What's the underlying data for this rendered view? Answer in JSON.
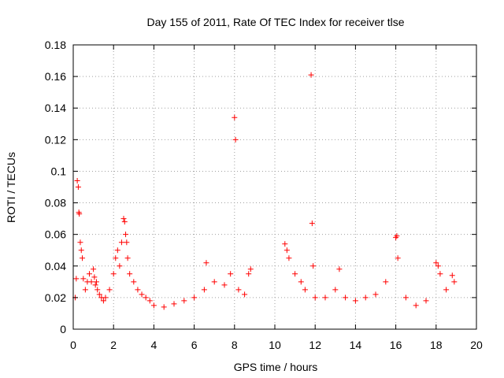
{
  "chart_data": {
    "type": "scatter",
    "title": "Day 155 of 2011, Rate Of TEC Index for receiver tlse",
    "xlabel": "GPS time / hours",
    "ylabel": "ROTI / TECUs",
    "xlim": [
      0,
      20
    ],
    "ylim": [
      0,
      0.18
    ],
    "xticks": [
      0,
      2,
      4,
      6,
      8,
      10,
      12,
      14,
      16,
      18,
      20
    ],
    "yticks": [
      0,
      0.02,
      0.04,
      0.06,
      0.08,
      0.1,
      0.12,
      0.14,
      0.16,
      0.18
    ],
    "xtick_labels": [
      "0",
      "2",
      "4",
      "6",
      "8",
      "10",
      "12",
      "14",
      "16",
      "18",
      "20"
    ],
    "ytick_labels": [
      "0",
      "0.02",
      "0.04",
      "0.06",
      "0.08",
      "0.1",
      "0.12",
      "0.14",
      "0.16",
      "0.18"
    ],
    "grid": true,
    "marker": "+",
    "color": "#ff0000",
    "data_gap_hours": [
      8.9,
      10.2
    ],
    "series": [
      {
        "name": "ROTI",
        "x": [
          0.1,
          0.15,
          0.2,
          0.25,
          0.28,
          0.3,
          0.35,
          0.4,
          0.45,
          0.5,
          0.6,
          0.7,
          0.8,
          0.9,
          1.0,
          1.05,
          1.1,
          1.15,
          1.2,
          1.3,
          1.4,
          1.5,
          1.6,
          1.8,
          2.0,
          2.1,
          2.2,
          2.3,
          2.4,
          2.5,
          2.55,
          2.6,
          2.65,
          2.7,
          2.8,
          3.0,
          3.2,
          3.4,
          3.6,
          3.8,
          4.0,
          4.5,
          5.0,
          5.5,
          6.0,
          6.5,
          6.6,
          7.0,
          7.5,
          7.8,
          8.0,
          8.05,
          8.2,
          8.5,
          8.7,
          8.8,
          10.5,
          10.6,
          10.7,
          11.0,
          11.3,
          11.5,
          11.8,
          11.85,
          11.9,
          12.0,
          12.5,
          13.0,
          13.2,
          13.5,
          14.0,
          14.5,
          15.0,
          15.5,
          16.0,
          16.05,
          16.1,
          16.5,
          17.0,
          17.5,
          18.0,
          18.1,
          18.2,
          18.5,
          18.8,
          18.9
        ],
        "y": [
          0.02,
          0.032,
          0.094,
          0.09,
          0.074,
          0.073,
          0.055,
          0.05,
          0.045,
          0.032,
          0.025,
          0.03,
          0.035,
          0.03,
          0.038,
          0.033,
          0.028,
          0.03,
          0.025,
          0.022,
          0.02,
          0.018,
          0.02,
          0.025,
          0.035,
          0.045,
          0.05,
          0.04,
          0.055,
          0.07,
          0.068,
          0.06,
          0.055,
          0.045,
          0.035,
          0.03,
          0.025,
          0.022,
          0.02,
          0.018,
          0.015,
          0.014,
          0.016,
          0.018,
          0.02,
          0.025,
          0.042,
          0.03,
          0.028,
          0.035,
          0.134,
          0.12,
          0.025,
          0.022,
          0.035,
          0.038,
          0.054,
          0.05,
          0.045,
          0.035,
          0.03,
          0.025,
          0.161,
          0.067,
          0.04,
          0.02,
          0.02,
          0.025,
          0.038,
          0.02,
          0.018,
          0.02,
          0.022,
          0.03,
          0.058,
          0.059,
          0.045,
          0.02,
          0.015,
          0.018,
          0.042,
          0.04,
          0.035,
          0.025,
          0.034,
          0.03
        ]
      }
    ]
  }
}
